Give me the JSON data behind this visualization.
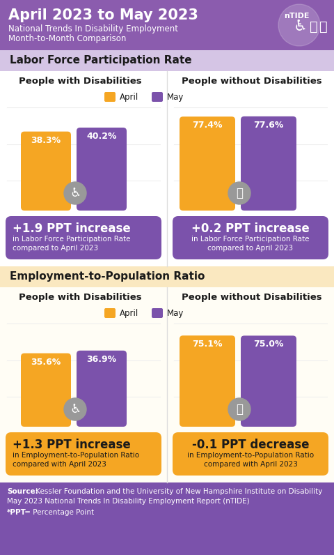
{
  "title_line1": "April 2023 to May 2023",
  "title_sub1": "National Trends In Disability Employment",
  "title_sub2": "Month-to-Month Comparison",
  "header_bg": "#8B5CAE",
  "section1_label": "Labor Force Participation Rate",
  "section1_bg": "#D5C5E5",
  "section2_label": "Employment-to-Population Ratio",
  "section2_bg": "#FAE8C0",
  "orange": "#F5A623",
  "purple": "#7B52AB",
  "gray_icon": "#999999",
  "left_col_label": "People with Disabilities",
  "right_col_label": "People without Disabilities",
  "april_label": "April",
  "may_label": "May",
  "lfpr_pwd_april": 38.3,
  "lfpr_pwd_may": 40.2,
  "lfpr_pwod_april": 77.4,
  "lfpr_pwod_may": 77.6,
  "lfpr_pwd_change": "+1.9 PPT increase",
  "lfpr_pwd_change_sub1": "in Labor Force Participation Rate",
  "lfpr_pwd_change_sub2": "compared to April 2023",
  "lfpr_pwod_change": "+0.2 PPT increase",
  "lfpr_pwod_change_sub1": "in Labor Force Participation Rate",
  "lfpr_pwod_change_sub2": "compared to April 2023",
  "lfpr_box_color": "#7B52AB",
  "epop_pwd_april": 35.6,
  "epop_pwd_may": 36.9,
  "epop_pwod_april": 75.1,
  "epop_pwod_may": 75.0,
  "epop_pwd_change": "+1.3 PPT increase",
  "epop_pwd_change_sub1": "in Employment-to-Population Ratio",
  "epop_pwd_change_sub2": "compared with April 2023",
  "epop_pwod_change": "-0.1 PPT decrease",
  "epop_pwod_change_sub1": "in Employment-to-Population Ratio",
  "epop_pwod_change_sub2": "compared with April 2023",
  "epop_box_color": "#F5A623",
  "source_bold": "Source:",
  "source_text": " Kessler Foundation and the University of New Hampshire Institute on Disability",
  "source_line2": "May 2023 National Trends In Disability Employment Report (nTIDE)",
  "source_line3_bold": "*PPT",
  "source_line3": " = Percentage Point",
  "source_bg": "#7B52AB",
  "white": "#FFFFFF",
  "black": "#1a1a1a",
  "content_bg": "#FFFFFF",
  "content_bg2": "#FFFDF5"
}
